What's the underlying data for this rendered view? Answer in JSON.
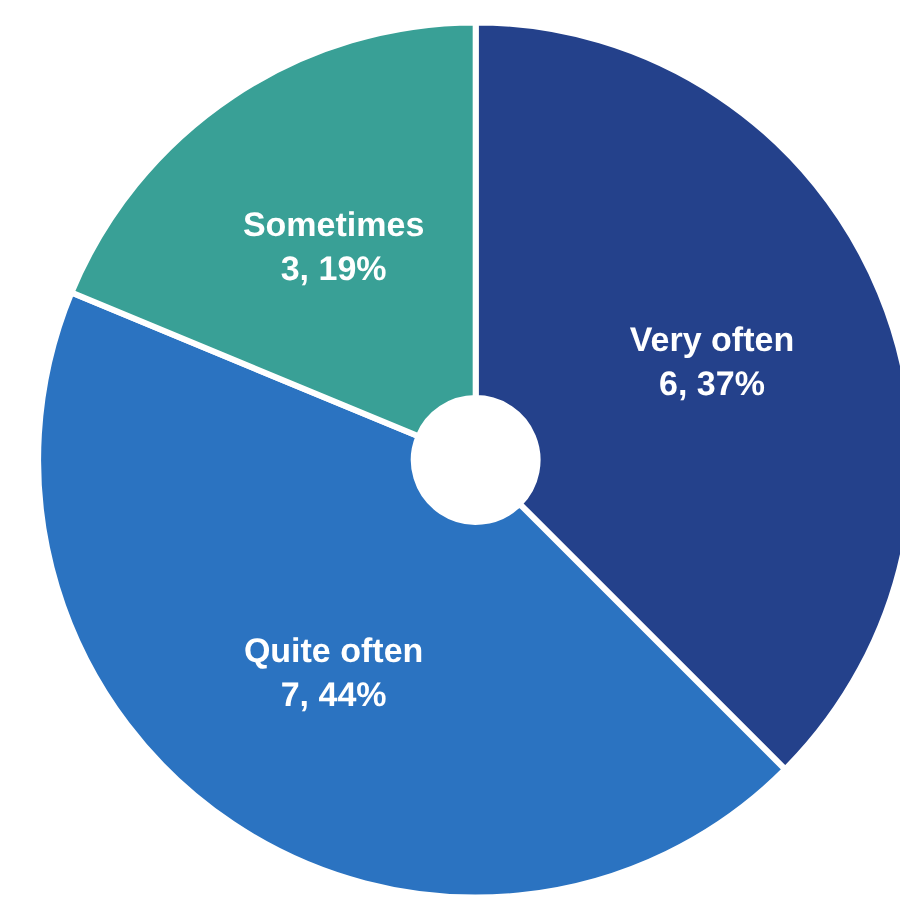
{
  "chart_data": {
    "type": "donut",
    "categories": [
      "Very often",
      "Quite often",
      "Sometimes"
    ],
    "values": [
      6,
      7,
      3
    ],
    "colors": [
      "#24418b",
      "#2b73c1",
      "#39a096"
    ],
    "value_labels": [
      "6, 37%",
      "7, 44%",
      "3, 19%"
    ],
    "legend": false
  }
}
